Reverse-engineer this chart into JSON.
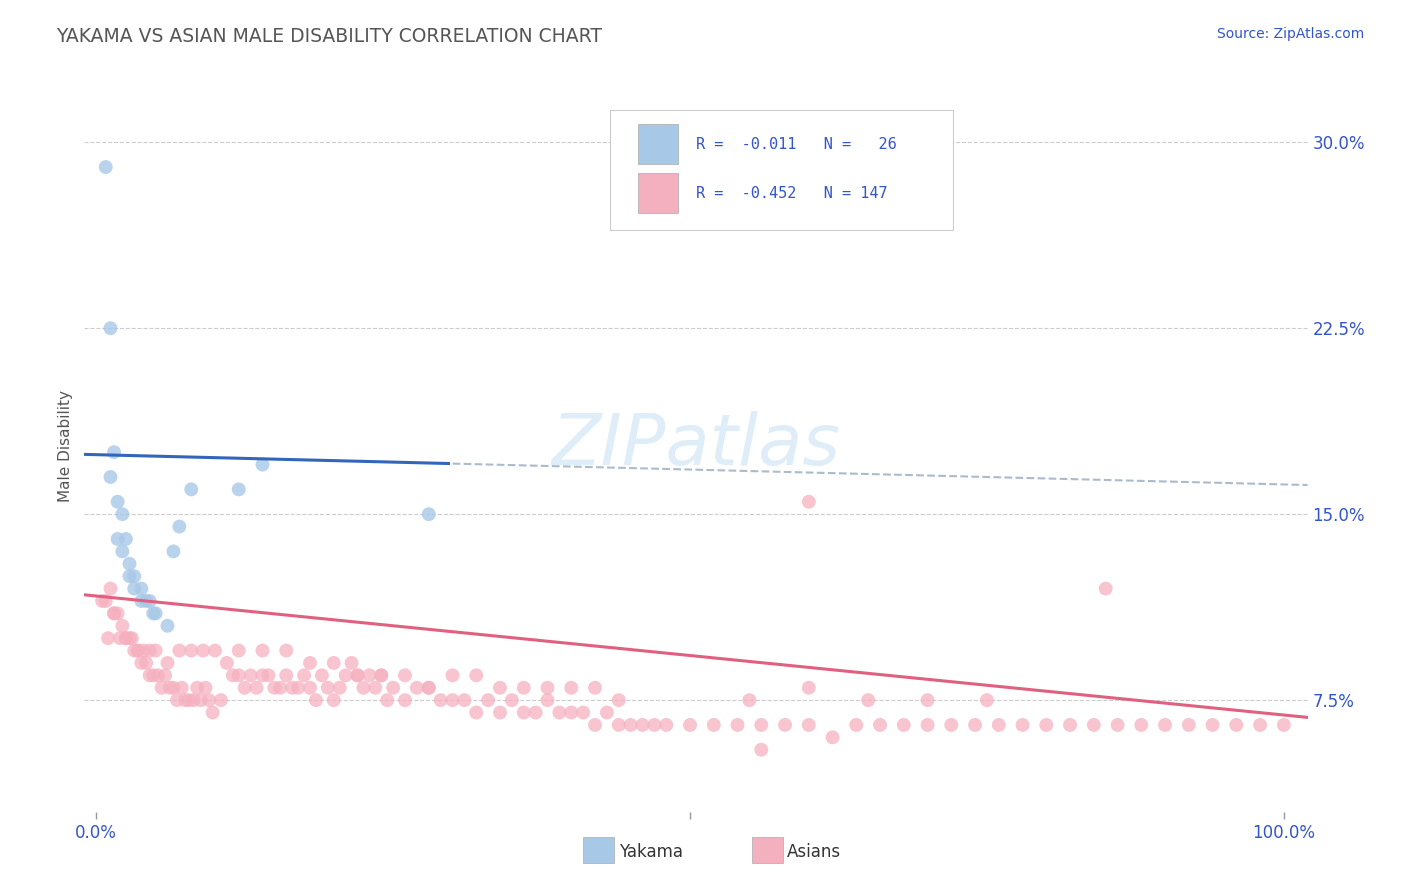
{
  "title": "YAKAMA VS ASIAN MALE DISABILITY CORRELATION CHART",
  "source_text": "Source: ZipAtlas.com",
  "ylabel": "Male Disability",
  "xlim": [
    -0.01,
    1.02
  ],
  "ylim": [
    0.03,
    0.325
  ],
  "yticks": [
    0.075,
    0.15,
    0.225,
    0.3
  ],
  "ytick_labels": [
    "7.5%",
    "15.0%",
    "22.5%",
    "30.0%"
  ],
  "xtick_positions": [
    0.0,
    0.5,
    1.0
  ],
  "xtick_labels": [
    "0.0%",
    "",
    "100.0%"
  ],
  "blue_color": "#a8c8e8",
  "blue_line_color": "#3366bb",
  "pink_color": "#f5b0c0",
  "pink_line_color": "#e06080",
  "dashed_line_color": "#aabbcc",
  "legend_text_color": "#3355cc",
  "title_color": "#555555",
  "axis_color": "#3355cc",
  "grid_color": "#cccccc",
  "watermark": "ZIPatlas",
  "bg_color": "#ffffff",
  "yakama_x": [
    0.008,
    0.012,
    0.015,
    0.012,
    0.018,
    0.022,
    0.018,
    0.025,
    0.022,
    0.028,
    0.028,
    0.032,
    0.032,
    0.038,
    0.038,
    0.042,
    0.045,
    0.048,
    0.05,
    0.06,
    0.065,
    0.07,
    0.08,
    0.12,
    0.14,
    0.28
  ],
  "yakama_y": [
    0.29,
    0.225,
    0.175,
    0.165,
    0.155,
    0.15,
    0.14,
    0.14,
    0.135,
    0.13,
    0.125,
    0.125,
    0.12,
    0.12,
    0.115,
    0.115,
    0.115,
    0.11,
    0.11,
    0.105,
    0.135,
    0.145,
    0.16,
    0.16,
    0.17,
    0.15
  ],
  "asian_x": [
    0.005,
    0.008,
    0.012,
    0.015,
    0.018,
    0.022,
    0.025,
    0.028,
    0.032,
    0.035,
    0.038,
    0.042,
    0.045,
    0.048,
    0.052,
    0.055,
    0.058,
    0.062,
    0.065,
    0.068,
    0.072,
    0.075,
    0.078,
    0.082,
    0.085,
    0.088,
    0.092,
    0.095,
    0.098,
    0.105,
    0.11,
    0.115,
    0.12,
    0.125,
    0.13,
    0.135,
    0.14,
    0.145,
    0.15,
    0.155,
    0.16,
    0.165,
    0.17,
    0.175,
    0.18,
    0.185,
    0.19,
    0.195,
    0.2,
    0.205,
    0.21,
    0.215,
    0.22,
    0.225,
    0.23,
    0.235,
    0.24,
    0.245,
    0.25,
    0.26,
    0.27,
    0.28,
    0.29,
    0.3,
    0.31,
    0.32,
    0.33,
    0.34,
    0.35,
    0.36,
    0.37,
    0.38,
    0.39,
    0.4,
    0.41,
    0.42,
    0.43,
    0.44,
    0.45,
    0.46,
    0.47,
    0.48,
    0.5,
    0.52,
    0.54,
    0.56,
    0.58,
    0.6,
    0.62,
    0.64,
    0.66,
    0.68,
    0.7,
    0.72,
    0.74,
    0.76,
    0.78,
    0.8,
    0.82,
    0.84,
    0.86,
    0.88,
    0.9,
    0.92,
    0.94,
    0.96,
    0.98,
    1.0,
    0.01,
    0.015,
    0.02,
    0.025,
    0.03,
    0.035,
    0.04,
    0.045,
    0.05,
    0.06,
    0.07,
    0.08,
    0.09,
    0.1,
    0.12,
    0.14,
    0.16,
    0.18,
    0.2,
    0.22,
    0.24,
    0.26,
    0.28,
    0.3,
    0.32,
    0.34,
    0.36,
    0.38,
    0.4,
    0.42,
    0.44,
    0.55,
    0.6,
    0.65,
    0.7,
    0.75,
    0.6,
    0.56,
    0.85
  ],
  "asian_y": [
    0.115,
    0.115,
    0.12,
    0.11,
    0.11,
    0.105,
    0.1,
    0.1,
    0.095,
    0.095,
    0.09,
    0.09,
    0.085,
    0.085,
    0.085,
    0.08,
    0.085,
    0.08,
    0.08,
    0.075,
    0.08,
    0.075,
    0.075,
    0.075,
    0.08,
    0.075,
    0.08,
    0.075,
    0.07,
    0.075,
    0.09,
    0.085,
    0.085,
    0.08,
    0.085,
    0.08,
    0.085,
    0.085,
    0.08,
    0.08,
    0.085,
    0.08,
    0.08,
    0.085,
    0.08,
    0.075,
    0.085,
    0.08,
    0.075,
    0.08,
    0.085,
    0.09,
    0.085,
    0.08,
    0.085,
    0.08,
    0.085,
    0.075,
    0.08,
    0.075,
    0.08,
    0.08,
    0.075,
    0.075,
    0.075,
    0.07,
    0.075,
    0.07,
    0.075,
    0.07,
    0.07,
    0.075,
    0.07,
    0.07,
    0.07,
    0.065,
    0.07,
    0.065,
    0.065,
    0.065,
    0.065,
    0.065,
    0.065,
    0.065,
    0.065,
    0.065,
    0.065,
    0.065,
    0.06,
    0.065,
    0.065,
    0.065,
    0.065,
    0.065,
    0.065,
    0.065,
    0.065,
    0.065,
    0.065,
    0.065,
    0.065,
    0.065,
    0.065,
    0.065,
    0.065,
    0.065,
    0.065,
    0.065,
    0.1,
    0.11,
    0.1,
    0.1,
    0.1,
    0.095,
    0.095,
    0.095,
    0.095,
    0.09,
    0.095,
    0.095,
    0.095,
    0.095,
    0.095,
    0.095,
    0.095,
    0.09,
    0.09,
    0.085,
    0.085,
    0.085,
    0.08,
    0.085,
    0.085,
    0.08,
    0.08,
    0.08,
    0.08,
    0.08,
    0.075,
    0.075,
    0.08,
    0.075,
    0.075,
    0.075,
    0.155,
    0.055,
    0.12
  ]
}
